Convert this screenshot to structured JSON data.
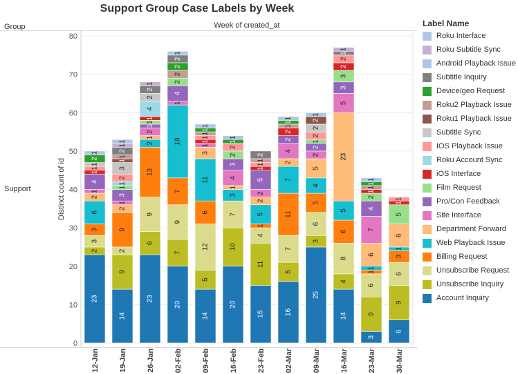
{
  "chart_data": {
    "type": "bar",
    "stacked": true,
    "title": "Support Group Case Labels by Week",
    "row_header": "Group",
    "row_value": "Support",
    "column_header": "Week of created_at",
    "ylabel": "Distinct count of id",
    "ylim": [
      0,
      80
    ],
    "yticks": [
      0,
      10,
      20,
      30,
      40,
      50,
      60,
      70,
      80
    ],
    "categories": [
      "12-Jan",
      "19-Jan",
      "26-Jan",
      "02-Feb",
      "09-Feb",
      "16-Feb",
      "23-Feb",
      "02-Mar",
      "09-Mar",
      "16-Mar",
      "23-Mar",
      "30-Mar"
    ],
    "legend_title": "Label Name",
    "series": [
      {
        "name": "Account Inquiry",
        "color": "#1f77b4",
        "values": [
          23,
          14,
          23,
          20,
          14,
          20,
          15,
          16,
          25,
          14,
          3,
          6
        ]
      },
      {
        "name": "Unsubscribe Inquiry",
        "color": "#bcbd22",
        "values": [
          2,
          9,
          6,
          7,
          5,
          10,
          11,
          5,
          3,
          4,
          9,
          9
        ]
      },
      {
        "name": "Unsubscribe Request",
        "color": "#dbdb8d",
        "values": [
          3,
          2,
          9,
          9,
          12,
          7,
          4,
          7,
          6,
          8,
          6,
          6
        ]
      },
      {
        "name": "Billing Request",
        "color": "#ff7f0e",
        "values": [
          3,
          9,
          13,
          7,
          6,
          0,
          1,
          11,
          5,
          6,
          1,
          3
        ]
      },
      {
        "name": "Web Playback Issue",
        "color": "#17becf",
        "values": [
          6,
          0,
          2,
          19,
          11,
          3,
          5,
          7,
          4,
          5,
          1,
          1
        ]
      },
      {
        "name": "Department Forward",
        "color": "#ffbb78",
        "values": [
          2,
          2,
          1,
          0,
          3,
          1,
          2,
          2,
          5,
          23,
          6,
          6
        ]
      },
      {
        "name": "Site Interface",
        "color": "#e377c2",
        "values": [
          1,
          1,
          2,
          1,
          1,
          4,
          2,
          4,
          2,
          5,
          7,
          0
        ]
      },
      {
        "name": "Pro/Con Feedback",
        "color": "#9467bd",
        "values": [
          4,
          3,
          1,
          4,
          0,
          3,
          5,
          2,
          2,
          3,
          4,
          0
        ]
      },
      {
        "name": "Film Request",
        "color": "#98df8a",
        "values": [
          0,
          1,
          1,
          2,
          0,
          2,
          0,
          0,
          1,
          3,
          2,
          5
        ]
      },
      {
        "name": "iOS Interface",
        "color": "#d62728",
        "values": [
          1,
          0,
          1,
          0,
          1,
          0,
          1,
          2,
          0,
          2,
          1,
          1
        ]
      },
      {
        "name": "Roku Account Sync",
        "color": "#9edae5",
        "values": [
          0,
          1,
          4,
          0,
          0,
          0,
          0,
          0,
          0,
          0,
          0,
          0
        ]
      },
      {
        "name": "IOS Playback Issue",
        "color": "#ff9896",
        "values": [
          1,
          2,
          0,
          0,
          1,
          2,
          1,
          0,
          2,
          2,
          0,
          1
        ]
      },
      {
        "name": "Subtitle Sync",
        "color": "#c7c7c7",
        "values": [
          1,
          3,
          2,
          0,
          0,
          0,
          0,
          0,
          2,
          0,
          0,
          0
        ]
      },
      {
        "name": "Roku1 Playback Issue",
        "color": "#8c564b",
        "values": [
          0,
          1,
          0,
          0,
          0,
          0,
          0,
          0,
          2,
          0,
          0,
          0
        ]
      },
      {
        "name": "Roku2 Playback Issue",
        "color": "#c49c94",
        "values": [
          0,
          1,
          0,
          2,
          1,
          0,
          1,
          1,
          0,
          0,
          1,
          0
        ]
      },
      {
        "name": "Device/geo Request",
        "color": "#2ca02c",
        "values": [
          2,
          0,
          0,
          2,
          1,
          1,
          0,
          1,
          0,
          0,
          1,
          0
        ]
      },
      {
        "name": "Subtitle Inquiry",
        "color": "#7f7f7f",
        "values": [
          0,
          2,
          2,
          2,
          0,
          0,
          2,
          0,
          0,
          1,
          0,
          0
        ]
      },
      {
        "name": "Android Playback Issue",
        "color": "#aec7e8",
        "values": [
          1,
          0,
          0,
          1,
          1,
          1,
          0,
          0,
          0,
          0,
          1,
          0
        ]
      },
      {
        "name": "Roku Subtitle Sync",
        "color": "#c5b0d5",
        "values": [
          0,
          1,
          1,
          0,
          0,
          0,
          0,
          0,
          0,
          1,
          0,
          0
        ]
      },
      {
        "name": "Roku Interface",
        "color": "#aec7e8",
        "values": [
          0,
          1,
          0,
          0,
          0,
          0,
          0,
          1,
          1,
          0,
          0,
          0
        ]
      }
    ]
  }
}
